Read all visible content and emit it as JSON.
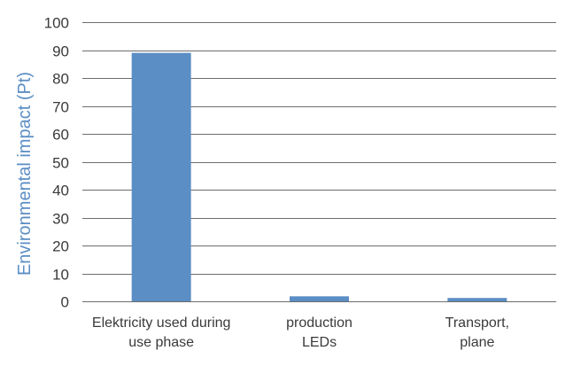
{
  "chart_data": {
    "type": "bar",
    "categories": [
      [
        "Elektricity used during",
        "use phase"
      ],
      [
        "production",
        "LEDs"
      ],
      [
        "Transport,",
        "plane"
      ]
    ],
    "values": [
      89,
      1.8,
      1.2
    ],
    "title": "",
    "xlabel": "",
    "ylabel": "Environmental impact (Pt)",
    "ylim": [
      0,
      100
    ],
    "yticks": [
      0,
      10,
      20,
      30,
      40,
      50,
      60,
      70,
      80,
      90,
      100
    ],
    "grid": true,
    "colors": {
      "bar": "#5b8ec4",
      "ylabel": "#5b8ec4",
      "grid": "#6e6e6e",
      "text": "#3a3a3a"
    }
  }
}
